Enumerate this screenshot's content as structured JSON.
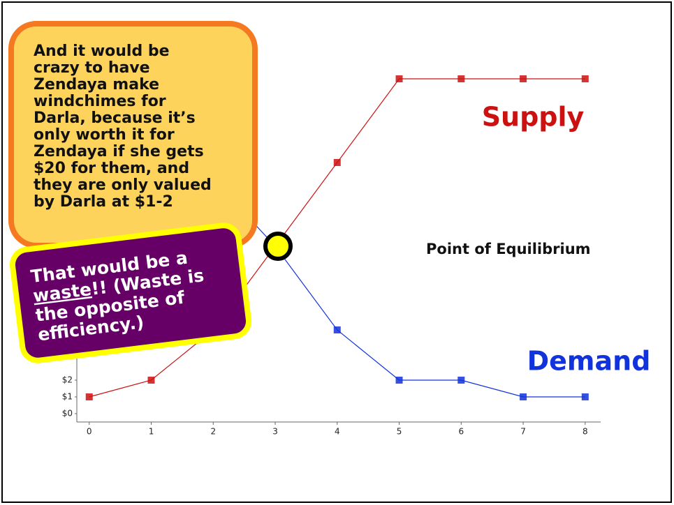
{
  "chart_data": {
    "type": "line",
    "x": [
      0,
      1,
      2,
      3,
      4,
      5,
      6,
      7,
      8
    ],
    "series": [
      {
        "name": "Supply",
        "color": "#cc1111",
        "values": [
          1,
          2,
          5,
          10,
          15,
          20,
          20,
          20,
          20
        ]
      },
      {
        "name": "Demand",
        "color": "#1133dd",
        "values": [
          20,
          18,
          14,
          10,
          5,
          2,
          2,
          1,
          1
        ]
      }
    ],
    "xlim": [
      -0.2,
      8.25
    ],
    "xticks": [
      0,
      1,
      2,
      3,
      4,
      5,
      6,
      7,
      8
    ],
    "ylim": [
      -0.5,
      21
    ],
    "yticks": [
      {
        "value": 0,
        "label": "$0"
      },
      {
        "value": 1,
        "label": "$1"
      },
      {
        "value": 2,
        "label": "$2"
      }
    ],
    "annotations": {
      "equilibrium": "Point of Equilibrium"
    }
  },
  "callout_orange": {
    "lines": [
      "And it would be",
      "crazy to have",
      "Zendaya make",
      "windchimes for",
      "Darla, because it’s",
      "only worth it for",
      "Zendaya if she gets",
      "$20 for them, and",
      "they are only valued",
      "by Darla at $1-2"
    ]
  },
  "callout_purple": {
    "line1": "That would be a",
    "line2_underlined": "waste",
    "line2_rest": "!! (Waste is",
    "line3": "the opposite of",
    "line4": "efficiency.)"
  }
}
